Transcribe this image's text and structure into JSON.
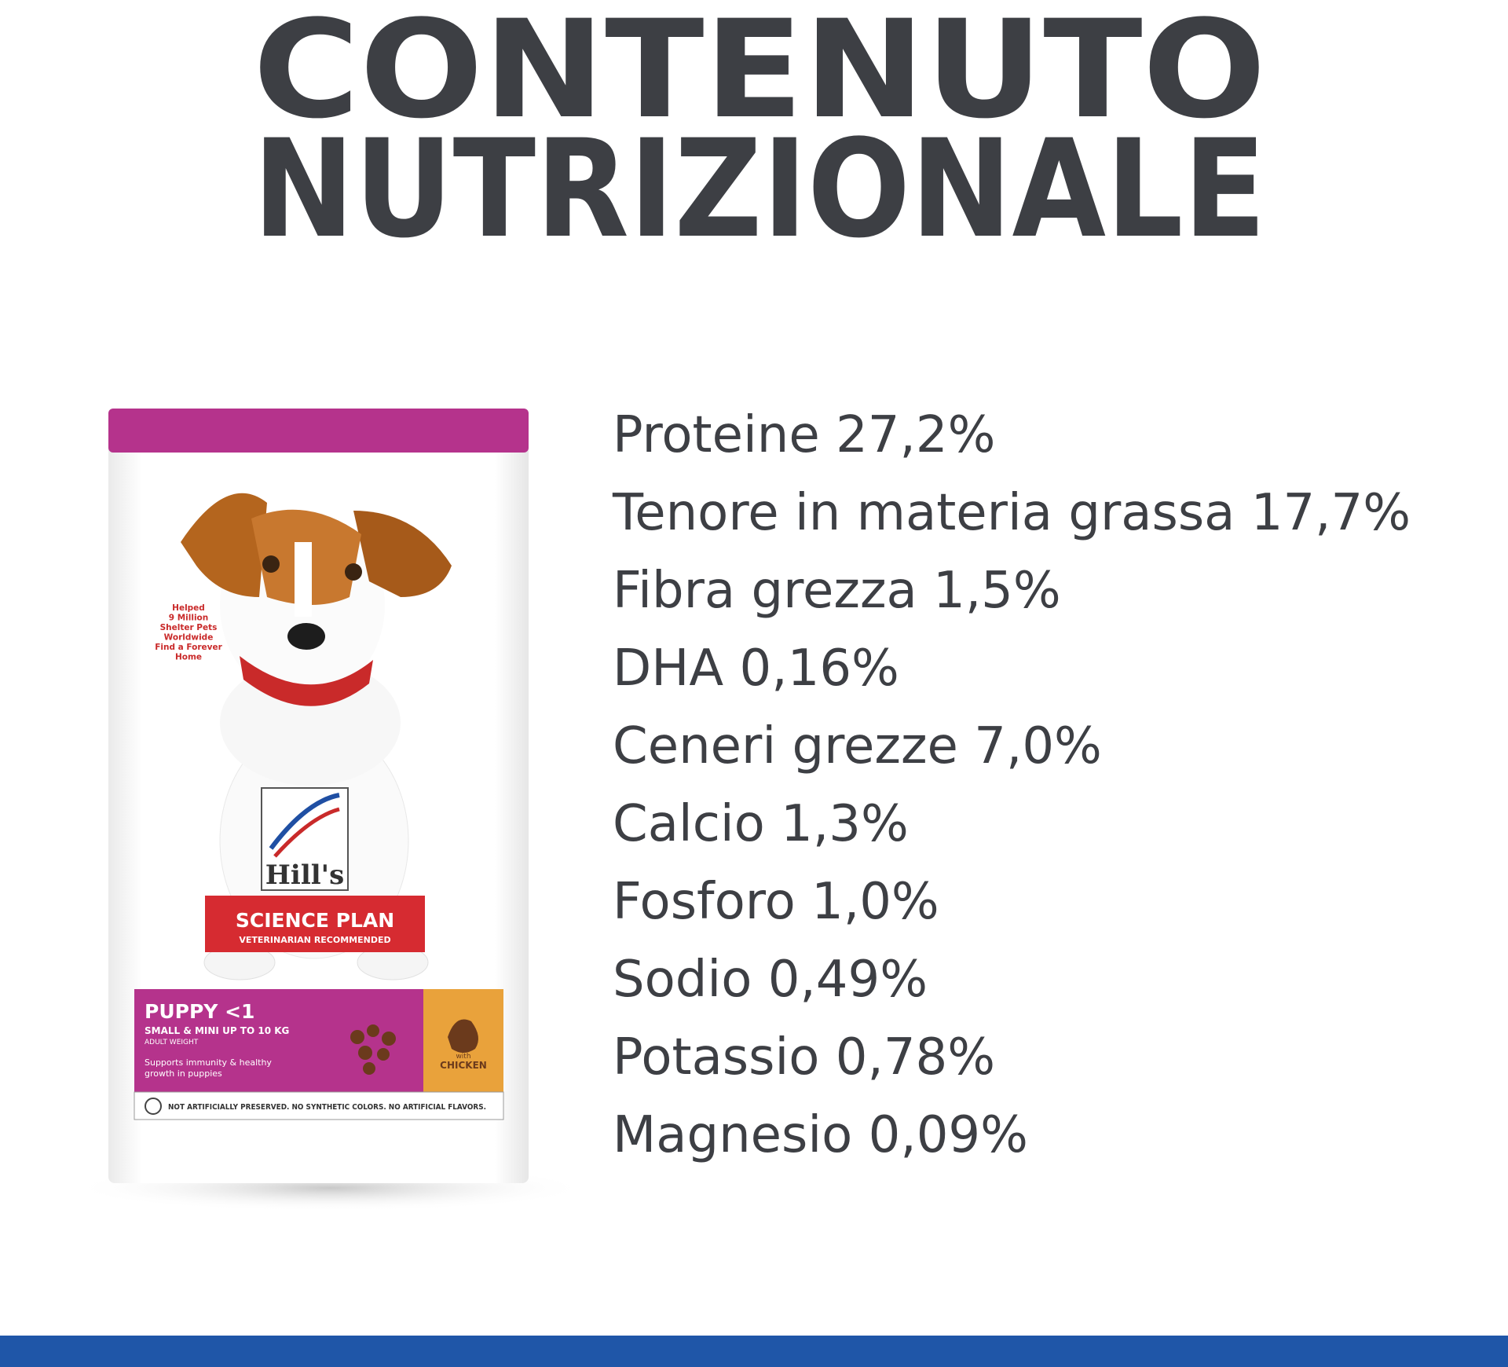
{
  "header": {
    "title_lines": [
      "CONTENUTO",
      "NUTRIZIONALE"
    ]
  },
  "nutrients": [
    "Proteine 27,2%",
    "Tenore in materia grassa 17,7%",
    "Fibra grezza 1,5%",
    "DHA 0,16%",
    "Ceneri grezze 7,0%",
    "Calcio 1,3%",
    "Fosforo 1,0%",
    "Sodio 0,49%",
    "Potassio 0,78%",
    "Magnesio 0,09%"
  ],
  "package": {
    "shelter_lines": [
      "Helped",
      "9 Million",
      "Shelter Pets",
      "Worldwide",
      "Find a Forever",
      "Home"
    ],
    "brand": "Hill's",
    "line": "SCIENCE PLAN",
    "tagline": "VETERINARIAN RECOMMENDED",
    "product": "PUPPY <1",
    "size": "SMALL & MINI UP TO 10 KG",
    "weight_note": "ADULT WEIGHT",
    "benefit_lines": [
      "Supports immunity & healthy",
      "growth in puppies"
    ],
    "flavor_prefix": "with",
    "flavor": "CHICKEN",
    "claims": "NOT ARTIFICIALLY PRESERVED. NO SYNTHETIC COLORS. NO ARTIFICIAL FLAVORS."
  }
}
